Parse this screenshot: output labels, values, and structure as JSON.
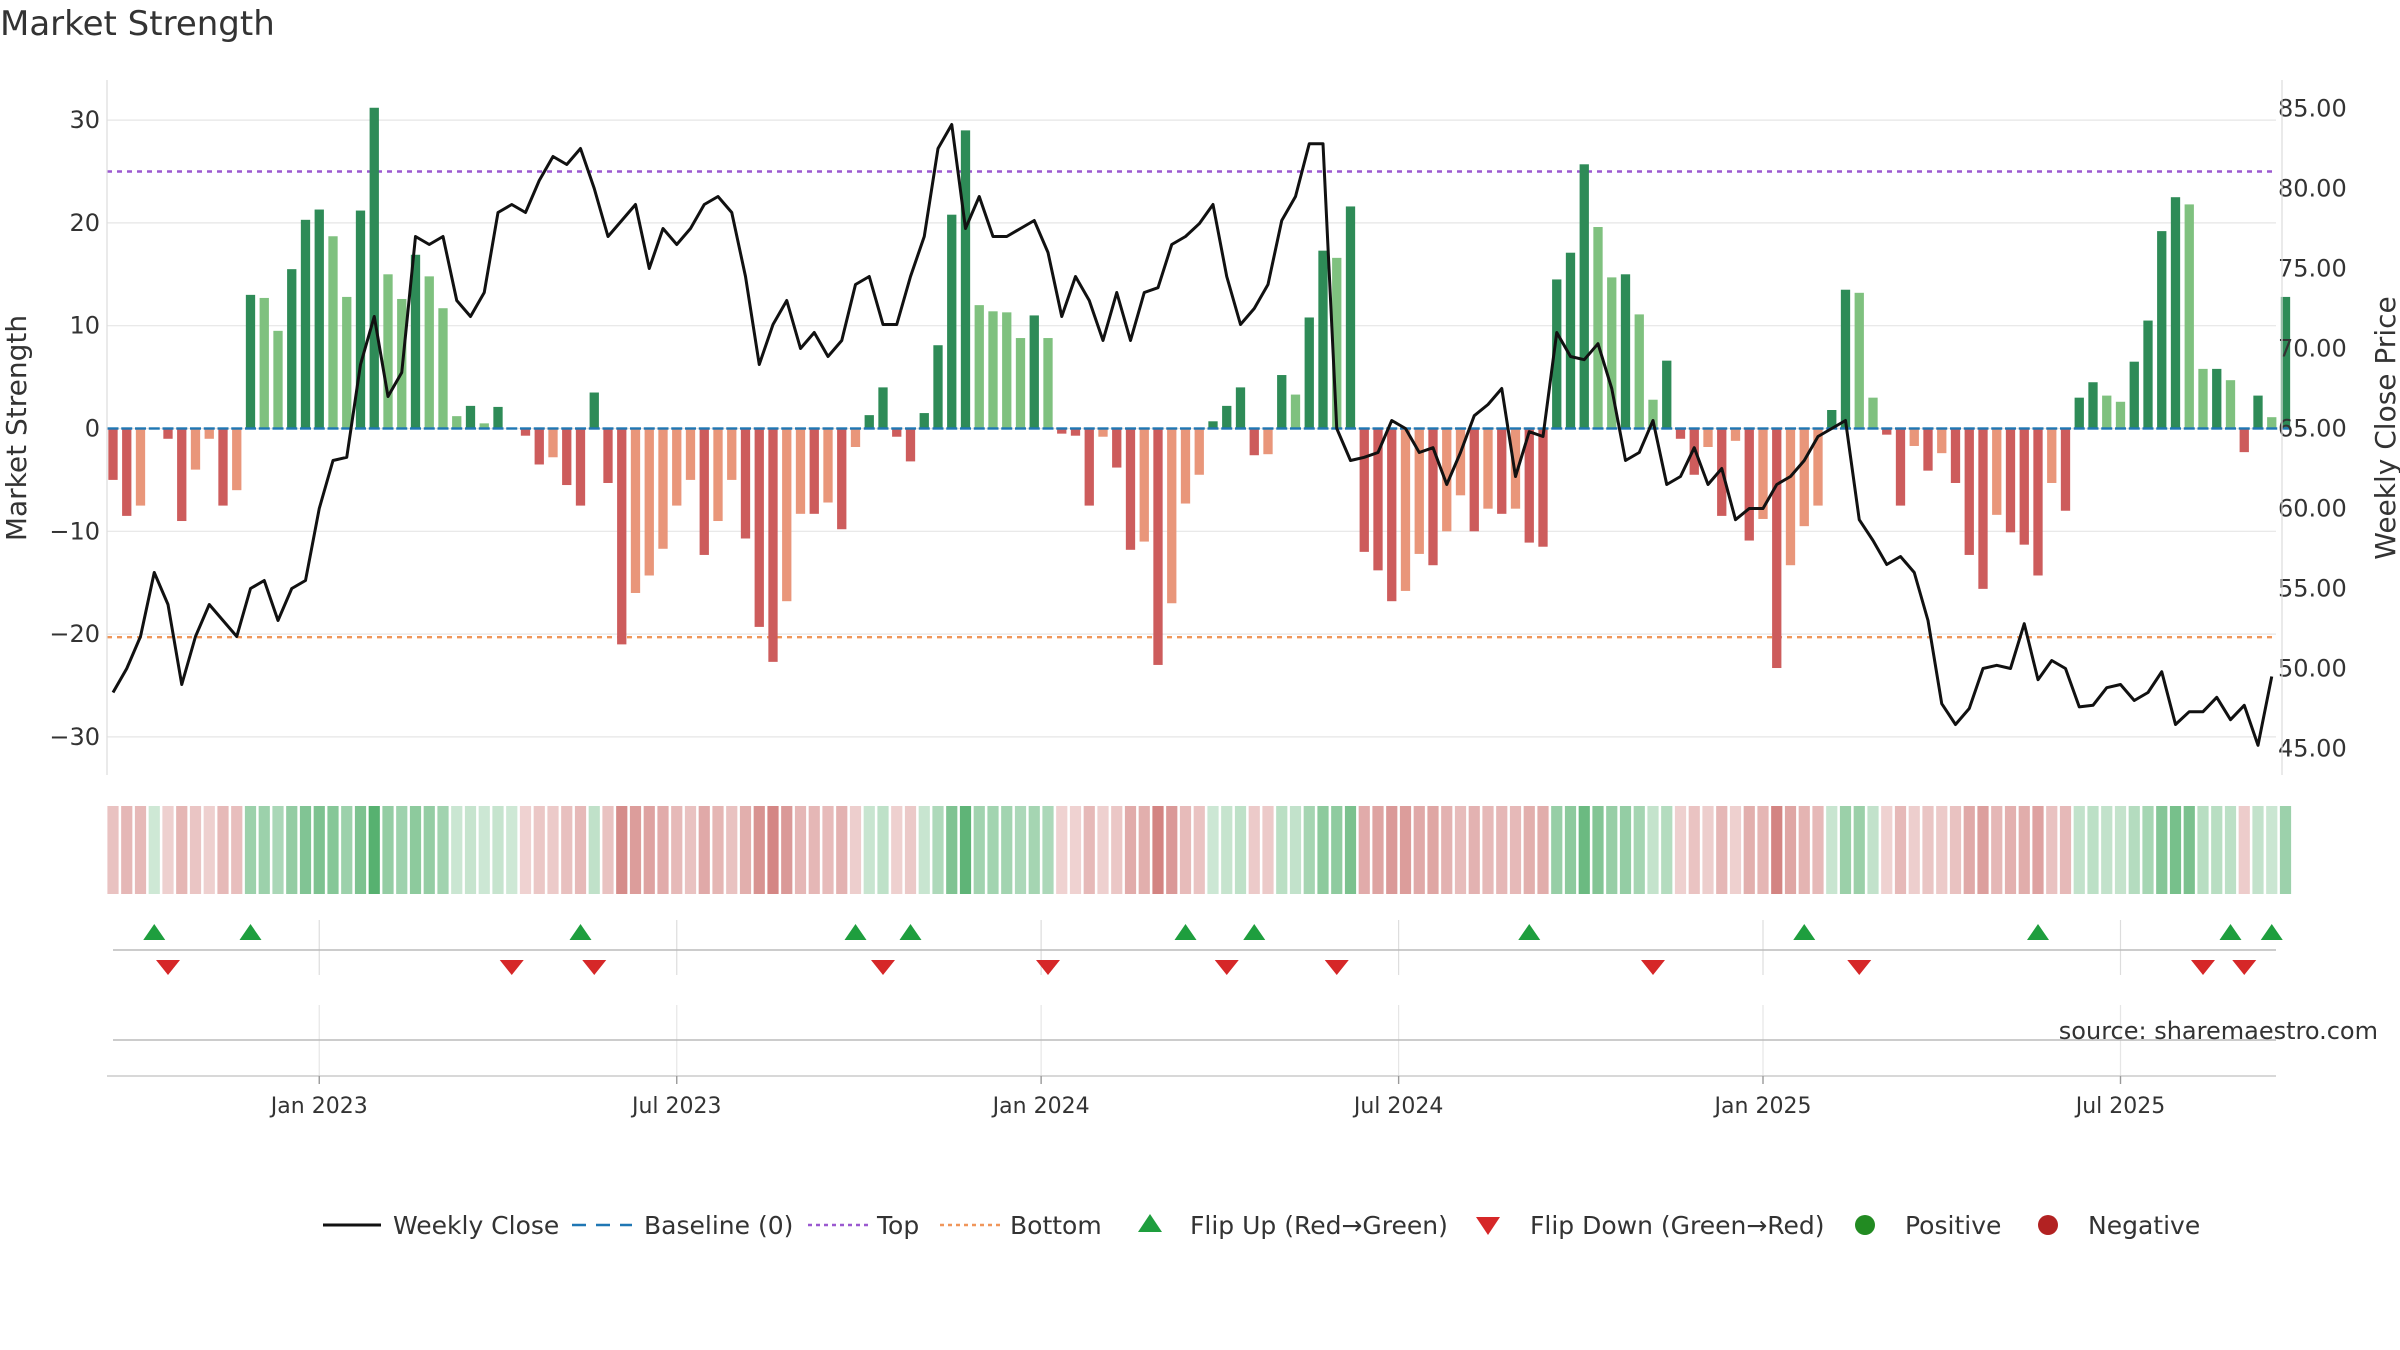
{
  "chart_data": {
    "type": "bar",
    "title": "Market Strength",
    "source": "source: sharemaestro.com",
    "ylabel_left": "Market Strength",
    "ylabel_right": "Weekly Close Price",
    "ylim_left": [
      -34,
      34
    ],
    "ylim_right": [
      44,
      86
    ],
    "left_ticks": [
      {
        "value": 30,
        "label": "30"
      },
      {
        "value": 20,
        "label": "20"
      },
      {
        "value": 10,
        "label": "10"
      },
      {
        "value": 0,
        "label": "0"
      },
      {
        "value": -10,
        "label": "−10"
      },
      {
        "value": -20,
        "label": "−20"
      },
      {
        "value": -30,
        "label": "−30"
      }
    ],
    "right_ticks": [
      {
        "value": 85,
        "label": "85.00"
      },
      {
        "value": 80,
        "label": "80.00"
      },
      {
        "value": 75,
        "label": "75.00"
      },
      {
        "value": 70,
        "label": "70.00"
      },
      {
        "value": 65,
        "label": "65.00"
      },
      {
        "value": 60,
        "label": "60.00"
      },
      {
        "value": 55,
        "label": "55.00"
      },
      {
        "value": 50,
        "label": "50.00"
      },
      {
        "value": 45,
        "label": "45.00"
      }
    ],
    "x_ticks": [
      {
        "week": 15,
        "label": "Jan 2023"
      },
      {
        "week": 41,
        "label": "Jul 2023"
      },
      {
        "week": 67.5,
        "label": "Jan 2024"
      },
      {
        "week": 93.5,
        "label": "Jul 2024"
      },
      {
        "week": 120,
        "label": "Jan 2025"
      },
      {
        "week": 146,
        "label": "Jul 2025"
      }
    ],
    "strength": [
      -5,
      -8.5,
      -7.5,
      0,
      -1,
      -9,
      -4,
      -1,
      -7.5,
      -6,
      13,
      12.7,
      9.5,
      15.5,
      20.3,
      21.3,
      18.7,
      12.8,
      21.2,
      31.2,
      15,
      12.6,
      16.9,
      14.8,
      11.7,
      1.2,
      2.2,
      0.5,
      2.1,
      0,
      -0.7,
      -3.5,
      -2.8,
      -5.5,
      -7.5,
      3.5,
      -5.3,
      -21,
      -16,
      -14.3,
      -11.7,
      -7.5,
      -5,
      -12.3,
      -9,
      -5,
      -10.7,
      -19.3,
      -22.7,
      -16.8,
      -8.3,
      -8.3,
      -7.2,
      -9.8,
      -1.8,
      1.3,
      4,
      -0.8,
      -3.2,
      1.5,
      8.1,
      20.8,
      29,
      12,
      11.4,
      11.3,
      8.8,
      11,
      8.8,
      -0.5,
      -0.7,
      -7.5,
      -0.8,
      -3.8,
      -11.8,
      -11,
      -23,
      -17,
      -7.3,
      -4.5,
      0.7,
      2.2,
      4,
      -2.6,
      -2.5,
      5.2,
      3.3,
      10.8,
      17.3,
      16.6,
      21.6,
      -12,
      -13.8,
      -16.8,
      -15.8,
      -12.2,
      -13.3,
      -10,
      -6.5,
      -10,
      -7.8,
      -8.3,
      -7.8,
      -11.1,
      -11.5,
      14.5,
      17.1,
      25.7,
      19.6,
      14.7,
      15,
      11.1,
      2.8,
      6.6,
      -1,
      -4.5,
      -1.8,
      -8.5,
      -1.2,
      -10.9,
      -8.8,
      -23.3,
      -13.3,
      -9.5,
      -7.5,
      1.8,
      13.5,
      13.2,
      3,
      -0.6,
      -7.5,
      -1.7,
      -4.1,
      -2.4,
      -5.3,
      -12.3,
      -15.6,
      -8.4,
      -10.1,
      -11.3,
      -14.3,
      -5.3,
      -8,
      3,
      4.5,
      3.2,
      2.6,
      6.5,
      10.5,
      19.2,
      22.5,
      21.8,
      5.8,
      5.8,
      4.7,
      -2.3,
      3.2,
      1.1,
      12.8
    ],
    "close": [
      48.5,
      50,
      52,
      56,
      54,
      49,
      52,
      54,
      53,
      52,
      55,
      55.5,
      53,
      55,
      55.5,
      60,
      63,
      63.2,
      69,
      72,
      67,
      68.5,
      77,
      76.5,
      77,
      73,
      72,
      73.5,
      78.5,
      79,
      78.5,
      80.5,
      82,
      81.5,
      82.5,
      80,
      77,
      78,
      79,
      75,
      77.5,
      76.5,
      77.5,
      79,
      79.5,
      78.5,
      74.5,
      69,
      71.5,
      73,
      70,
      71,
      69.5,
      70.5,
      74,
      74.5,
      71.5,
      71.5,
      74.5,
      77,
      82.5,
      84,
      77.5,
      79.5,
      77,
      77,
      77.5,
      78,
      76,
      72,
      74.5,
      73,
      70.5,
      73.5,
      70.5,
      73.5,
      73.8,
      76.5,
      77,
      77.8,
      79,
      74.5,
      71.5,
      72.5,
      74,
      78,
      79.5,
      82.8,
      82.8,
      65,
      63,
      63.2,
      63.5,
      65.5,
      65,
      63.5,
      63.8,
      61.5,
      63.5,
      65.8,
      66.5,
      67.5,
      62,
      64.8,
      64.5,
      71,
      69.5,
      69.3,
      70.3,
      67.5,
      63,
      63.5,
      65.5,
      61.5,
      62,
      63.8,
      61.5,
      62.5,
      59.3,
      60,
      60,
      61.5,
      62,
      63,
      64.5,
      65,
      65.5,
      59.3,
      58,
      56.5,
      57,
      56,
      53,
      47.8,
      46.5,
      47.5,
      50,
      50.2,
      50,
      52.8,
      49.3,
      50.5,
      50,
      47.6,
      47.7,
      48.8,
      49,
      48,
      48.5,
      49.8,
      46.5,
      47.3,
      47.3,
      48.2,
      46.8,
      47.7,
      45.2,
      49.5
    ],
    "reference_lines": {
      "top": 25,
      "bottom": -20.3,
      "baseline": 0
    },
    "flip_up_weeks": [
      3,
      10,
      34,
      54,
      58,
      78,
      83,
      103,
      123,
      140,
      154,
      157
    ],
    "flip_down_weeks": [
      4,
      29,
      35,
      56,
      68,
      81,
      89,
      112,
      127,
      152,
      155
    ],
    "legend": [
      {
        "key": "close",
        "label": "Weekly Close"
      },
      {
        "key": "baseline",
        "label": "Baseline (0)"
      },
      {
        "key": "top",
        "label": "Top"
      },
      {
        "key": "bottom",
        "label": "Bottom"
      },
      {
        "key": "flip-up",
        "label": "Flip Up (Red→Green)"
      },
      {
        "key": "flip-down",
        "label": "Flip Down (Green→Red)"
      },
      {
        "key": "positive",
        "label": "Positive"
      },
      {
        "key": "negative",
        "label": "Negative"
      }
    ]
  },
  "colors": {
    "pos_strong": "#2e8b57",
    "pos_light": "#7fc17f",
    "neg_strong": "#cd5c5c",
    "neg_light": "#e9967a",
    "line": "#111111",
    "baseline": "#1f77b4",
    "top": "#9b59d0",
    "bottom": "#f0965a",
    "flip_up": "#1e9e3e",
    "flip_down": "#d62728",
    "positive_dot": "#228b22",
    "negative_dot": "#b22222",
    "grid": "#e6e6e6",
    "text": "#333333"
  }
}
